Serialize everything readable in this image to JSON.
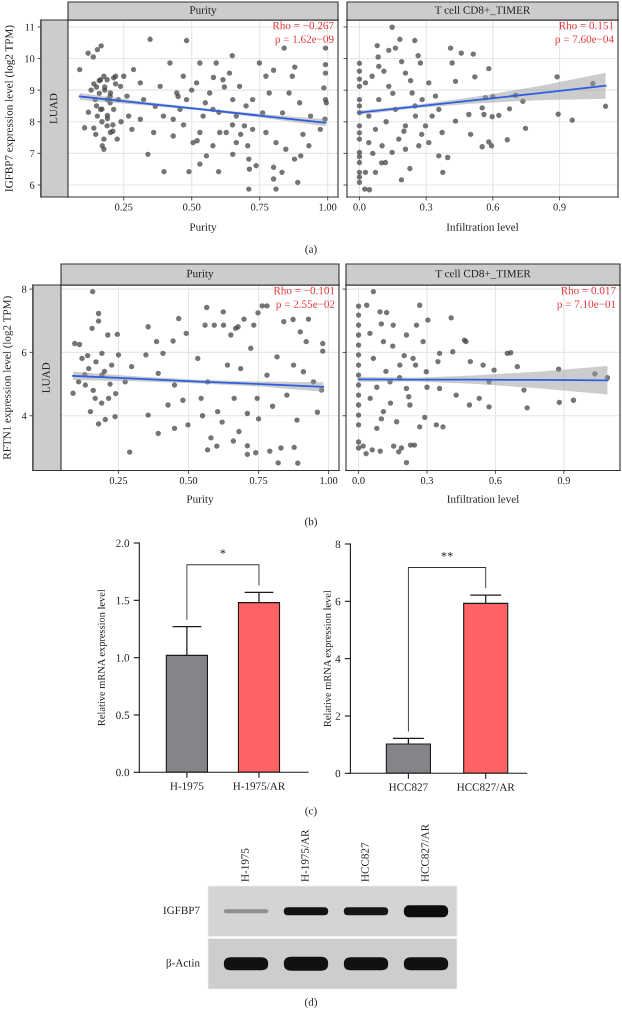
{
  "chart_data": [
    {
      "type": "scatter",
      "title": "Purity",
      "xlabel": "Purity",
      "ylabel": "IGFBP7 expression level (log2 TPM)",
      "xlim": [
        0.045,
        1.038
      ],
      "ylim": [
        5.62,
        11.22
      ],
      "xticks": [
        {
          "value": 0.25,
          "label": "0.25"
        },
        {
          "value": 0.5,
          "label": "0.50"
        },
        {
          "value": 0.75,
          "label": "0.75"
        },
        {
          "value": 1,
          "label": "1.00"
        }
      ],
      "yticks": [
        6,
        7,
        8,
        9,
        10,
        11
      ],
      "grid": true,
      "annotations": [
        "LUAD",
        "Rho = −0.267",
        "p = 1.62e−09",
        "(a)"
      ],
      "series": [
        {
          "type": "scatter",
          "color": "#404040",
          "marker": "circle",
          "x": [
            0.088,
            0.106,
            0.119,
            0.138,
            0.167,
            0.153,
            0.145,
            0.165,
            0.177,
            0.189,
            0.213,
            0.22,
            0.165,
            0.177,
            0.171,
            0.177,
            0.189,
            0.147,
            0.201,
            0.226,
            0.25,
            0.262,
            0.268,
            0.286,
            0.28,
            0.311,
            0.323,
            0.347,
            0.339,
            0.36,
            0.366,
            0.398,
            0.396,
            0.42,
            0.432,
            0.445,
            0.469,
            0.481,
            0.49,
            0.505,
            0.518,
            0.53,
            0.542,
            0.554,
            0.53,
            0.566,
            0.59,
            0.599,
            0.603,
            0.615,
            0.639,
            0.649,
            0.651,
            0.664,
            0.676,
            0.694,
            0.706,
            0.71,
            0.712,
            0.71,
            0.724,
            0.737,
            0.749,
            0.761,
            0.773,
            0.773,
            0.785,
            0.801,
            0.801,
            0.801,
            0.81,
            0.81,
            0.832,
            0.84,
            0.846,
            0.858,
            0.87,
            0.879,
            0.878,
            0.89,
            0.901,
            0.909,
            0.931,
            0.937,
            0.973,
            0.992,
            0.992,
            0.992,
            0.986,
            0.992,
            0.995,
            0.99,
            0.897,
            0.481,
            0.578,
            0.432,
            0.651,
            0.53,
            0.627,
            0.201,
            0.189,
            0.153,
            0.213,
            0.238,
            0.311,
            0.384,
            0.457,
            0.724,
            0.834,
            0.578,
            0.664,
            0.13,
            0.14,
            0.16,
            0.18,
            0.2,
            0.15,
            0.17,
            0.19,
            0.21,
            0.23,
            0.12,
            0.14,
            0.16,
            0.18,
            0.2,
            0.22,
            0.17,
            0.19,
            0.21,
            0.15,
            0.24,
            0.45,
            0.5,
            0.55,
            0.6,
            0.65,
            0.7,
            0.62,
            0.68,
            0.52,
            0.47,
            0.58
          ],
          "values": [
            9.65,
            7.81,
            10.17,
            10.05,
            10.4,
            10.28,
            8.7,
            9.33,
            9.44,
            9.33,
            9.39,
            9.44,
            8.39,
            7.45,
            7.24,
            7.13,
            7.87,
            7.6,
            7.66,
            7.45,
            9.44,
            8.81,
            8.18,
            9.65,
            7.76,
            9.23,
            8.7,
            10.61,
            6.97,
            7.66,
            8.49,
            6.42,
            8.18,
            9.86,
            7.55,
            8.91,
            9.44,
            10.57,
            6.42,
            7.34,
            9.23,
            9.86,
            8.18,
            6.92,
            6.66,
            8.91,
            9.86,
            6.42,
            7.66,
            9.33,
            9.54,
            10.09,
            6.97,
            8.18,
            9.12,
            7.87,
            7.24,
            6.82,
            6.5,
            5.87,
            8.7,
            6.61,
            9.86,
            8.28,
            7.66,
            9.44,
            8.91,
            9.63,
            6.56,
            6.19,
            5.87,
            7.34,
            6.4,
            10.33,
            7.13,
            8.91,
            9.44,
            9.73,
            6.82,
            6.08,
            6.92,
            7.6,
            7.24,
            8.18,
            7.76,
            10.33,
            9.81,
            9.54,
            9.07,
            8.7,
            8.6,
            8.08,
            8.6,
            8.7,
            8.39,
            8.08,
            8.7,
            7.66,
            7.66,
            8.91,
            8.7,
            8.18,
            8.39,
            9.12,
            8.08,
            9.12,
            8.39,
            7.76,
            8.28,
            7.24,
            7.34,
            9.0,
            9.2,
            8.9,
            9.1,
            8.6,
            8.5,
            8.0,
            8.2,
            7.9,
            8.7,
            8.3,
            7.8,
            9.3,
            9.0,
            8.8,
            9.2,
            8.4,
            8.1,
            7.7,
            9.1,
            8.0,
            8.8,
            9.0,
            8.6,
            8.3,
            7.9,
            8.5,
            9.1,
            7.6,
            7.4,
            7.9,
            9.4
          ]
        },
        {
          "type": "line",
          "color": "#2f5fe0",
          "x": [
            0.088,
            0.315,
            0.54,
            0.765,
            0.992
          ],
          "values": [
            8.8,
            8.59,
            8.39,
            8.18,
            7.97
          ],
          "lower": [
            8.69,
            8.53,
            8.35,
            8.12,
            7.86
          ],
          "upper": [
            8.91,
            8.65,
            8.43,
            8.24,
            8.08
          ]
        }
      ]
    },
    {
      "type": "scatter",
      "title": "T cell CD8+_TIMER",
      "xlabel": "Infiltration level",
      "xlim": [
        -0.056,
        1.163
      ],
      "ylim": [
        5.62,
        11.22
      ],
      "xticks": [
        {
          "value": 0,
          "label": "0.0"
        },
        {
          "value": 0.3,
          "label": "0.3"
        },
        {
          "value": 0.6,
          "label": "0.6"
        },
        {
          "value": 0.9,
          "label": "0.9"
        }
      ],
      "yticks": [
        6,
        7,
        8,
        9,
        10,
        11
      ],
      "tick_labels": "x",
      "grid": true,
      "annotations": [
        "Rho = 0.151",
        "p = 7.60e−04"
      ],
      "series": [
        {
          "type": "scatter",
          "color": "#404040",
          "marker": "circle",
          "x": [
            0,
            0,
            0,
            0,
            0,
            0,
            0,
            0,
            0,
            0,
            0.024,
            0.045,
            0.027,
            0.072,
            0.08,
            0.084,
            0.132,
            0.147,
            0.182,
            0.249,
            0.162,
            0.264,
            0.274,
            0.189,
            0.227,
            0.375,
            0.397,
            0.41,
            0.458,
            0.512,
            0.417,
            0.582,
            0.519,
            0.432,
            0.492,
            0.5,
            0.552,
            0.567,
            0.6,
            0.56,
            0.597,
            0.627,
            0.552,
            0.582,
            0.594,
            0.675,
            0.665,
            0.702,
            0.735,
            0.747,
            0.889,
            0.894,
            0.957,
            1.05,
            1.107,
            0.432,
            0.372,
            0.357,
            0.342,
            0.312,
            0.282,
            0.252,
            0.207,
            0.177,
            0.147,
            0.102,
            0.072,
            0.042,
            0.087,
            0.132,
            0.207,
            0.162,
            0.237,
            0.027,
            0.057,
            0.042,
            0.117,
            0.267,
            0.312,
            0.357,
            0.297,
            0.327,
            0.087,
            0.207,
            0,
            0,
            0,
            0,
            0,
            0,
            0.11,
            0.19,
            0.23,
            0.15,
            0.25,
            0.12,
            0.2,
            0.28,
            0.06,
            0.1
          ],
          "values": [
            9.6,
            9.12,
            8.7,
            8.29,
            7.87,
            7.45,
            7.03,
            6.71,
            6.4,
            6.08,
            5.87,
            5.85,
            6.4,
            6.4,
            10.41,
            10.05,
            10.26,
            10.99,
            10.61,
            10.57,
            10.33,
            10.09,
            9.86,
            6.16,
            6.52,
            6.4,
            6.87,
            10.33,
            10.17,
            10.14,
            9.86,
            9.68,
            9.42,
            9.28,
            8.23,
            7.6,
            8.44,
            8.76,
            8.79,
            8.23,
            8.16,
            8.2,
            7.21,
            7.36,
            7.24,
            8.41,
            7.43,
            8.84,
            8.65,
            7.79,
            9.42,
            8.24,
            8.05,
            9.21,
            8.49,
            8.02,
            7.66,
            8.39,
            8.81,
            9.23,
            8.7,
            8.18,
            7.87,
            7.45,
            7.03,
            7.24,
            7.76,
            7.34,
            8.7,
            9.12,
            9.54,
            8.39,
            8.91,
            9.23,
            9.44,
            8.18,
            6.71,
            7.24,
            7.34,
            6.92,
            7.87,
            8.18,
            9.75,
            7.13,
            9.85,
            9.35,
            8.5,
            7.65,
            6.9,
            6.25,
            9.6,
            9.9,
            9.3,
            8.9,
            8.5,
            8.0,
            7.7,
            7.6,
            7.0,
            6.7
          ]
        },
        {
          "type": "line",
          "color": "#2f5fe0",
          "x": [
            0,
            0.25,
            0.5,
            0.8,
            1.107
          ],
          "values": [
            8.29,
            8.48,
            8.67,
            8.9,
            9.14
          ],
          "lower": [
            8.22,
            8.43,
            8.57,
            8.68,
            8.73
          ],
          "upper": [
            8.36,
            8.53,
            8.77,
            9.12,
            9.55
          ]
        }
      ]
    },
    {
      "type": "scatter",
      "title": "Purity",
      "xlabel": "Purity",
      "ylabel": "RFTN1 expression level (log2 TPM)",
      "xlim": [
        0.045,
        1.037
      ],
      "ylim": [
        2.27,
        8.13
      ],
      "xticks": [
        {
          "value": 0.25,
          "label": "0.25"
        },
        {
          "value": 0.5,
          "label": "0.50"
        },
        {
          "value": 0.75,
          "label": "0.75"
        },
        {
          "value": 1,
          "label": "1.00"
        }
      ],
      "yticks": [
        4,
        6,
        8
      ],
      "grid": true,
      "annotations": [
        "LUAD",
        "Rho = −0.101",
        "p = 2.55e−02",
        "(b)"
      ],
      "series": [
        {
          "type": "scatter",
          "color": "#404040",
          "marker": "circle",
          "x": [
            0.088,
            0.094,
            0.111,
            0.158,
            0.179,
            0.179,
            0.156,
            0.212,
            0.246,
            0.12,
            0.191,
            0.25,
            0.179,
            0.203,
            0.238,
            0.15,
            0.132,
            0.215,
            0.274,
            0.297,
            0.356,
            0.356,
            0.348,
            0.386,
            0.409,
            0.445,
            0.465,
            0.492,
            0.45,
            0.392,
            0.427,
            0.48,
            0.498,
            0.45,
            0.392,
            0.565,
            0.559,
            0.592,
            0.625,
            0.624,
            0.651,
            0.668,
            0.698,
            0.677,
            0.733,
            0.748,
            0.763,
            0.78,
            0.84,
            0.873,
            0.928,
            0.92,
            0.979,
            0.979,
            0.975,
            0.96,
            0.887,
            0.851,
            0.816,
            0.78,
            0.745,
            0.71,
            0.663,
            0.604,
            0.568,
            0.639,
            0.533,
            0.545,
            0.875,
            0.91,
            0.946,
            0.108,
            0.144,
            0.191,
            0.226,
            0.167,
            0.722,
            0.686,
            0.899,
            0.29,
            0.568,
            0.601,
            0.71,
            0.71,
            0.74,
            0.79,
            0.83,
            0.877,
            0.82,
            0.89,
            0.14,
            0.17,
            0.2,
            0.22,
            0.16,
            0.19,
            0.13,
            0.24,
            0.55,
            0.62,
            0.68,
            0.75,
            0.8,
            0.58,
            0.66
          ],
          "values": [
            4.71,
            6.28,
            6.25,
            7.92,
            7.23,
            6.99,
            6.76,
            6.55,
            6.57,
            5.81,
            5.97,
            5.92,
            3.74,
            3.88,
            3.97,
            4.13,
            4.97,
            4.55,
            5.07,
            5.55,
            6.81,
            4.02,
            5.92,
            6.34,
            5.97,
            6.36,
            7.07,
            6.6,
            4.97,
            5.34,
            4.34,
            4.49,
            3.71,
            3.6,
            3.44,
            7.42,
            6.86,
            6.86,
            6.86,
            7.28,
            6.55,
            6.76,
            7.05,
            6.81,
            6.86,
            7.25,
            7.47,
            7.47,
            6.97,
            7.04,
            7.05,
            6.34,
            6.28,
            6.04,
            4.81,
            4.11,
            3.86,
            4.65,
            5.86,
            5.28,
            4.55,
            4.07,
            4.55,
            4.13,
            5.07,
            5.6,
            5.81,
            4.55,
            5.6,
            5.39,
            5.07,
            5.07,
            5.49,
            5.28,
            5.6,
            4.55,
            6.13,
            5.49,
            6.65,
            2.85,
            2.92,
            3.04,
            3.05,
            2.78,
            2.83,
            2.88,
            2.98,
            3.0,
            2.51,
            2.5,
            5.9,
            5.7,
            5.4,
            5.0,
            4.8,
            4.4,
            5.3,
            4.7,
            4.0,
            3.8,
            3.5,
            3.9,
            4.3,
            3.3,
            3.2
          ]
        },
        {
          "type": "line",
          "color": "#2f5fe0",
          "x": [
            0.088,
            0.31,
            0.535,
            0.76,
            0.981
          ],
          "values": [
            5.26,
            5.17,
            5.08,
            5.0,
            4.91
          ],
          "lower": [
            5.13,
            5.09,
            5.02,
            4.92,
            4.76
          ],
          "upper": [
            5.39,
            5.25,
            5.14,
            5.08,
            5.06
          ]
        }
      ]
    },
    {
      "type": "scatter",
      "title": "T cell CD8+_TIMER",
      "xlabel": "Infiltration level",
      "xlim": [
        -0.055,
        1.146
      ],
      "ylim": [
        2.27,
        8.13
      ],
      "xticks": [
        {
          "value": 0,
          "label": "0.0"
        },
        {
          "value": 0.3,
          "label": "0.3"
        },
        {
          "value": 0.6,
          "label": "0.6"
        },
        {
          "value": 0.9,
          "label": "0.9"
        }
      ],
      "yticks": [
        4,
        6,
        8
      ],
      "tick_labels": "x",
      "grid": true,
      "annotations": [
        "Rho = 0.017",
        "p = 7.10e−01"
      ],
      "series": [
        {
          "type": "scatter",
          "color": "#404040",
          "marker": "circle",
          "x": [
            0.065,
            0,
            0.036,
            0,
            0,
            0,
            0,
            0,
            0,
            0,
            0,
            0,
            0,
            0,
            0,
            0.268,
            0.094,
            0.123,
            0.304,
            0.406,
            0.464,
            0.471,
            0.413,
            0.355,
            0.348,
            0.49,
            0.546,
            0.594,
            0.652,
            0.667,
            0.696,
            0.572,
            0.725,
            0.739,
            0.877,
            0.88,
            0.942,
            1.036,
            1.091,
            0.572,
            0.529,
            0.486,
            0.428,
            0.355,
            0.254,
            0.21,
            0.152,
            0.109,
            0.283,
            0.065,
            0.181,
            0.239,
            0.297,
            0.138,
            0.21,
            0.051,
            0.109,
            0.167,
            0.29,
            0.268,
            0.341,
            0.37,
            0.225,
            0.08,
            0,
            0.02,
            0,
            0.06,
            0.095,
            0.033,
            0.154,
            0.176,
            0.188,
            0.228,
            0.245,
            0.21,
            0.1,
            0.15,
            0.2,
            0.12,
            0.18,
            0.25,
            0.08,
            0.14,
            0.22,
            0.3,
            0.05,
            0.1
          ],
          "values": [
            7.92,
            7.46,
            7.49,
            7.18,
            6.86,
            6.55,
            6.23,
            5.92,
            5.6,
            5.28,
            4.97,
            4.65,
            4.34,
            4.02,
            3.71,
            7.49,
            7.28,
            7.26,
            7.02,
            7.09,
            6.39,
            6.34,
            6.02,
            5.97,
            5.71,
            5.71,
            5.6,
            5.44,
            5.97,
            5.99,
            5.55,
            5.07,
            4.81,
            4.25,
            5.47,
            4.42,
            4.49,
            5.32,
            5.2,
            4.28,
            4.55,
            4.34,
            4.65,
            4.86,
            6.86,
            6.55,
            6.86,
            6.34,
            6.34,
            5.81,
            5.6,
            5.81,
            5.39,
            5.07,
            4.86,
            4.55,
            4.13,
            3.81,
            3.95,
            3.65,
            3.71,
            3.65,
            4.34,
            3.6,
            3.17,
            3.04,
            2.98,
            2.92,
            2.88,
            2.8,
            3.04,
            2.86,
            2.98,
            3.07,
            3.07,
            2.52,
            6.9,
            6.2,
            5.9,
            5.4,
            5.2,
            5.6,
            4.9,
            4.4,
            4.6,
            4.9,
            6.6,
            3.9
          ]
        },
        {
          "type": "line",
          "color": "#2f5fe0",
          "x": [
            0,
            0.25,
            0.5,
            0.8,
            1.091
          ],
          "values": [
            5.15,
            5.14,
            5.14,
            5.13,
            5.12
          ],
          "lower": [
            5.07,
            5.08,
            5.01,
            4.86,
            4.67
          ],
          "upper": [
            5.23,
            5.2,
            5.27,
            5.4,
            5.57
          ]
        }
      ]
    },
    {
      "type": "bar",
      "ylabel": "Relative mRNA expression level",
      "categories": [
        "H-1975",
        "H-1975/AR"
      ],
      "values": [
        1.02,
        1.48
      ],
      "colors": [
        "#858489",
        "#ff6262"
      ],
      "errors": [
        [
          1.02,
          1.27
        ],
        [
          1.48,
          1.57
        ]
      ],
      "ylim": [
        0,
        2
      ],
      "yticks": [
        {
          "value": 0,
          "label": "0.0"
        },
        {
          "value": 0.5,
          "label": "0.5"
        },
        {
          "value": 1,
          "label": "1.0"
        },
        {
          "value": 1.5,
          "label": "1.5"
        },
        {
          "value": 2,
          "label": "2.0"
        }
      ],
      "annotations": [
        "*",
        "(c)"
      ]
    },
    {
      "type": "bar",
      "ylabel": "Relative mRNA expression level",
      "categories": [
        "HCC827",
        "HCC827/AR"
      ],
      "values": [
        1.02,
        5.93
      ],
      "colors": [
        "#858489",
        "#ff6262"
      ],
      "errors": [
        [
          1.02,
          1.22
        ],
        [
          5.93,
          6.22
        ]
      ],
      "ylim": [
        0,
        8
      ],
      "yticks": [
        0,
        2,
        4,
        6,
        8
      ],
      "annotations": [
        "**"
      ]
    },
    {
      "type": "other",
      "categories": [
        "H-1975",
        "H-1975/AR",
        "HCC827",
        "HCC827/AR"
      ],
      "y_categories": [
        "IGFBP7",
        "β-Actin"
      ],
      "annotations": [
        "(d)"
      ]
    }
  ]
}
